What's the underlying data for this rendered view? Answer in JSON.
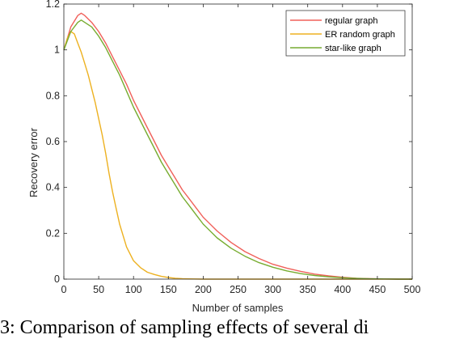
{
  "chart_data": {
    "type": "line",
    "xlabel": "Number of samples",
    "ylabel": "Recovery error",
    "xlim": [
      0,
      500
    ],
    "ylim": [
      0,
      1.2
    ],
    "xticks": [
      0,
      50,
      100,
      150,
      200,
      250,
      300,
      350,
      400,
      450,
      500
    ],
    "yticks": [
      0,
      0.2,
      0.4,
      0.6,
      0.8,
      1,
      1.2
    ],
    "ytick_labels": [
      "0",
      "0.2",
      "0.4",
      "0.6",
      "0.8",
      "1",
      "1.2"
    ],
    "grid": false,
    "legend_position": "top-right",
    "series": [
      {
        "name": "regular graph",
        "color": "#f0605a",
        "x": [
          0,
          10,
          20,
          25,
          30,
          40,
          50,
          60,
          70,
          80,
          90,
          100,
          110,
          120,
          130,
          140,
          150,
          160,
          170,
          180,
          190,
          200,
          220,
          240,
          260,
          280,
          300,
          320,
          340,
          360,
          380,
          400,
          420,
          440,
          460,
          480,
          500
        ],
        "values": [
          1.0,
          1.1,
          1.15,
          1.16,
          1.15,
          1.12,
          1.08,
          1.03,
          0.97,
          0.91,
          0.85,
          0.78,
          0.72,
          0.66,
          0.6,
          0.54,
          0.49,
          0.44,
          0.39,
          0.35,
          0.31,
          0.27,
          0.21,
          0.16,
          0.12,
          0.09,
          0.065,
          0.048,
          0.034,
          0.022,
          0.014,
          0.008,
          0.004,
          0.002,
          0.001,
          0.0,
          0.0
        ]
      },
      {
        "name": "ER random graph",
        "color": "#edb120",
        "x": [
          0,
          5,
          10,
          15,
          20,
          25,
          30,
          35,
          40,
          45,
          50,
          55,
          60,
          65,
          70,
          75,
          80,
          85,
          90,
          95,
          100,
          110,
          120,
          130,
          140,
          150,
          160,
          170,
          180,
          200,
          250,
          300,
          350,
          400,
          450,
          500
        ],
        "values": [
          1.0,
          1.05,
          1.08,
          1.07,
          1.03,
          0.99,
          0.94,
          0.89,
          0.83,
          0.77,
          0.7,
          0.63,
          0.55,
          0.46,
          0.38,
          0.31,
          0.24,
          0.19,
          0.14,
          0.11,
          0.08,
          0.05,
          0.03,
          0.02,
          0.012,
          0.007,
          0.004,
          0.002,
          0.001,
          0.0,
          0.0,
          0.0,
          0.0,
          0.0,
          0.0,
          0.0
        ]
      },
      {
        "name": "star-like graph",
        "color": "#77ac30",
        "x": [
          0,
          10,
          20,
          25,
          30,
          40,
          50,
          60,
          70,
          80,
          90,
          100,
          110,
          120,
          130,
          140,
          150,
          160,
          170,
          180,
          190,
          200,
          220,
          240,
          260,
          280,
          300,
          320,
          340,
          360,
          380,
          400,
          420,
          440,
          460,
          480,
          500
        ],
        "values": [
          1.0,
          1.08,
          1.12,
          1.13,
          1.12,
          1.1,
          1.06,
          1.01,
          0.95,
          0.89,
          0.82,
          0.75,
          0.69,
          0.63,
          0.57,
          0.51,
          0.46,
          0.41,
          0.36,
          0.32,
          0.28,
          0.24,
          0.18,
          0.135,
          0.1,
          0.072,
          0.052,
          0.036,
          0.024,
          0.016,
          0.01,
          0.006,
          0.003,
          0.0015,
          0.0007,
          0.0,
          0.0
        ]
      }
    ]
  },
  "caption_text": "3: Comparison of sampling effects of several di"
}
